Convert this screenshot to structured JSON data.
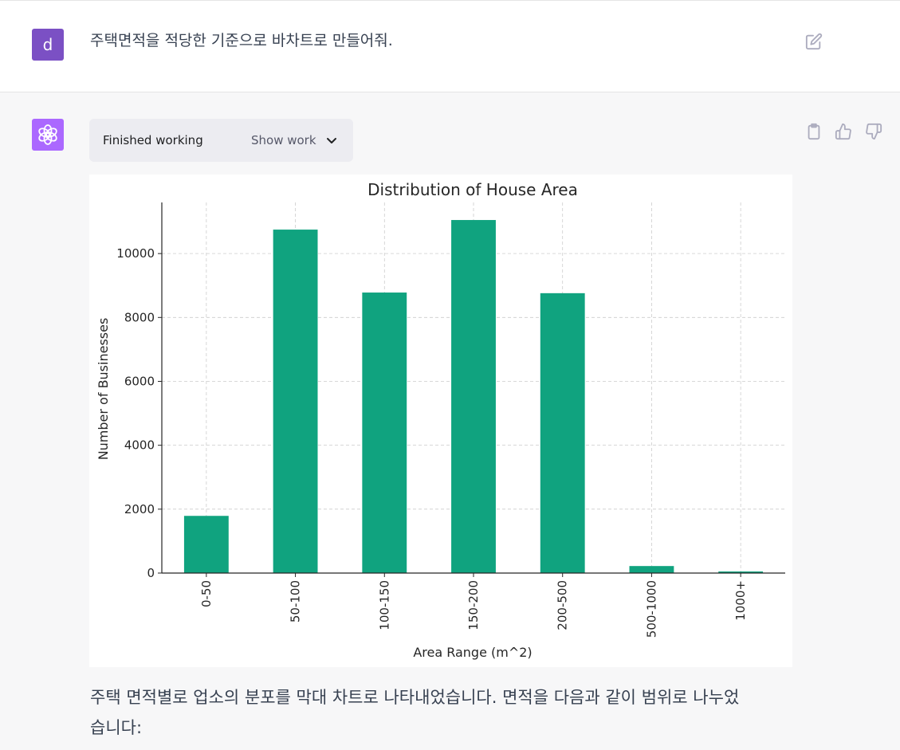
{
  "user": {
    "avatar_letter": "d",
    "message": "주택면적을 적당한 기준으로 바차트로 만들어줘."
  },
  "assistant": {
    "work_status": "Finished working",
    "show_work_label": "Show work",
    "answer_line1": "주택 면적별로 업소의 분포를 막대 차트로 나타내었습니다. 면적을 다음과 같이 범위로 나누었",
    "answer_line2": "습니다:"
  },
  "icons": {
    "user_avatar": "user-avatar-letter",
    "edit": "edit-pencil-icon",
    "bot_avatar": "openai-logo-icon",
    "chevron": "chevron-down-icon",
    "copy": "clipboard-icon",
    "like": "thumbs-up-icon",
    "dislike": "thumbs-down-icon"
  },
  "colors": {
    "user_avatar": "#7b50c4",
    "bot_avatar": "#ab68ff",
    "bar": "#10a37f"
  },
  "chart_data": {
    "type": "bar",
    "title": "Distribution of House Area",
    "xlabel": "Area Range (m^2)",
    "ylabel": "Number of Businesses",
    "categories": [
      "0-50",
      "50-100",
      "100-150",
      "150-200",
      "200-500",
      "500-1000",
      "1000+"
    ],
    "values": [
      1790,
      10750,
      8780,
      11050,
      8760,
      220,
      50
    ],
    "ylim": [
      0,
      11600
    ],
    "yticks": [
      0,
      2000,
      4000,
      6000,
      8000,
      10000
    ],
    "grid": true,
    "bar_color": "#10a37f"
  }
}
